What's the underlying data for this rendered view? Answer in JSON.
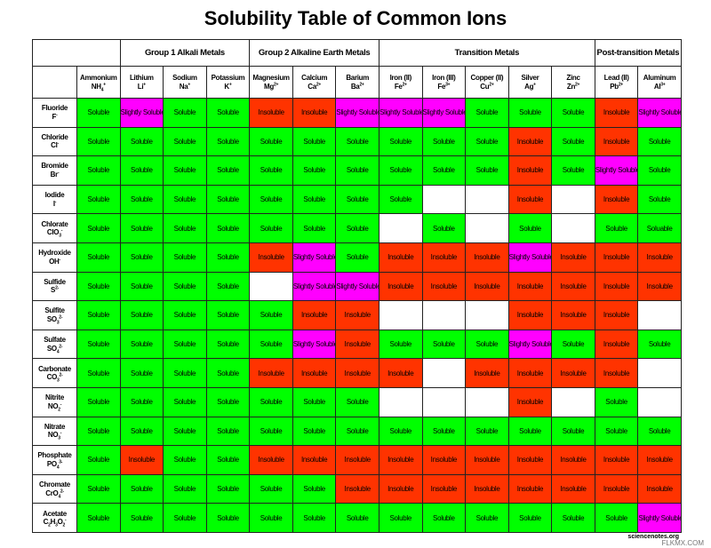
{
  "title": "Solubility Table of Common Ions",
  "footer": "sciencenotes.org",
  "watermark": "FLKMX.COM",
  "colors": {
    "Soluble": "#00ff00",
    "Soluable": "#00ff00",
    "Slightly Soluble": "#ff00ff",
    "Insoluble": "#ff3300"
  },
  "table": {
    "groups": [
      {
        "label": null,
        "columns": [
          {
            "name": "Ammonium",
            "formula": [
              {
                "text": "NH"
              },
              {
                "sub": "4"
              },
              {
                "sup": "+"
              }
            ]
          }
        ]
      },
      {
        "label": "Group 1 Alkali Metals",
        "columns": [
          {
            "name": "Lithium",
            "formula": [
              {
                "text": "Li"
              },
              {
                "sup": "+"
              }
            ]
          },
          {
            "name": "Sodium",
            "formula": [
              {
                "text": "Na"
              },
              {
                "sup": "+"
              }
            ]
          },
          {
            "name": "Potassium",
            "formula": [
              {
                "text": "K"
              },
              {
                "sup": "+"
              }
            ]
          }
        ]
      },
      {
        "label": "Group 2 Alkaline Earth Metals",
        "columns": [
          {
            "name": "Magnesium",
            "formula": [
              {
                "text": "Mg"
              },
              {
                "sup": "2+"
              }
            ]
          },
          {
            "name": "Calcium",
            "formula": [
              {
                "text": "Ca"
              },
              {
                "sup": "2+"
              }
            ]
          },
          {
            "name": "Barium",
            "formula": [
              {
                "text": "Ba"
              },
              {
                "sup": "2+"
              }
            ]
          }
        ]
      },
      {
        "label": "Transition Metals",
        "columns": [
          {
            "name": "Iron (II)",
            "formula": [
              {
                "text": "Fe"
              },
              {
                "sup": "2+"
              }
            ]
          },
          {
            "name": "Iron (III)",
            "formula": [
              {
                "text": "Fe"
              },
              {
                "sup": "3+"
              }
            ]
          },
          {
            "name": "Copper (II)",
            "formula": [
              {
                "text": "Cu"
              },
              {
                "sup": "2+"
              }
            ]
          },
          {
            "name": "Silver",
            "formula": [
              {
                "text": "Ag"
              },
              {
                "sup": "+"
              }
            ]
          },
          {
            "name": "Zinc",
            "formula": [
              {
                "text": "Zn"
              },
              {
                "sup": "2+"
              }
            ]
          }
        ]
      },
      {
        "label": "Post-transition Metals",
        "columns": [
          {
            "name": "Lead (II)",
            "formula": [
              {
                "text": "Pb"
              },
              {
                "sup": "2+"
              }
            ]
          },
          {
            "name": "Aluminum",
            "formula": [
              {
                "text": "Al"
              },
              {
                "sup": "3+"
              }
            ]
          }
        ]
      }
    ],
    "rows": [
      {
        "anion": {
          "name": "Fluoride",
          "formula": [
            {
              "text": "F"
            },
            {
              "sup": "-"
            }
          ]
        },
        "cells": [
          "Soluble",
          "Slightly Soluble",
          "Soluble",
          "Soluble",
          "Insoluble",
          "Insoluble",
          "Slightly Soluble",
          "Slightly Soluble",
          "Slightly Soluble",
          "Soluble",
          "Soluble",
          "Soluble",
          "Insoluble",
          "Slightly Soluble"
        ]
      },
      {
        "anion": {
          "name": "Chloride",
          "formula": [
            {
              "text": "Cl"
            },
            {
              "sup": "-"
            }
          ]
        },
        "cells": [
          "Soluble",
          "Soluble",
          "Soluble",
          "Soluble",
          "Soluble",
          "Soluble",
          "Soluble",
          "Soluble",
          "Soluble",
          "Soluble",
          "Insoluble",
          "Soluble",
          "Insoluble",
          "Soluble"
        ]
      },
      {
        "anion": {
          "name": "Bromide",
          "formula": [
            {
              "text": "Br"
            },
            {
              "sup": "-"
            }
          ]
        },
        "cells": [
          "Soluble",
          "Soluble",
          "Soluble",
          "Soluble",
          "Soluble",
          "Soluble",
          "Soluble",
          "Soluble",
          "Soluble",
          "Soluble",
          "Insoluble",
          "Soluble",
          "Slightly Soluble",
          "Soluble"
        ]
      },
      {
        "anion": {
          "name": "Iodide",
          "formula": [
            {
              "text": "I"
            },
            {
              "sup": "-"
            }
          ]
        },
        "cells": [
          "Soluble",
          "Soluble",
          "Soluble",
          "Soluble",
          "Soluble",
          "Soluble",
          "Soluble",
          "Soluble",
          null,
          null,
          "Insoluble",
          null,
          "Insoluble",
          "Soluble"
        ]
      },
      {
        "anion": {
          "name": "Chlorate",
          "formula": [
            {
              "text": "ClO"
            },
            {
              "sub": "3"
            },
            {
              "sup": "-"
            }
          ]
        },
        "cells": [
          "Soluble",
          "Soluble",
          "Soluble",
          "Soluble",
          "Soluble",
          "Soluble",
          "Soluble",
          null,
          "Soluble",
          null,
          "Soluble",
          null,
          "Soluble",
          "Soluable"
        ]
      },
      {
        "anion": {
          "name": "Hydroxide",
          "formula": [
            {
              "text": "OH"
            },
            {
              "sup": "-"
            }
          ]
        },
        "cells": [
          "Soluble",
          "Soluble",
          "Soluble",
          "Soluble",
          "Insoluble",
          "Slightly Soluble",
          "Soluble",
          "Insoluble",
          "Insoluble",
          "Insoluble",
          "Slightly Soluble",
          "Insoluble",
          "Insoluble",
          "Insoluble"
        ]
      },
      {
        "anion": {
          "name": "Sulfide",
          "formula": [
            {
              "text": "S"
            },
            {
              "sup": "2-"
            }
          ]
        },
        "cells": [
          "Soluble",
          "Soluble",
          "Soluble",
          "Soluble",
          null,
          "Slightly Soluble",
          "Slightly Soluble",
          "Insoluble",
          "Insoluble",
          "Insoluble",
          "Insoluble",
          "Insoluble",
          "Insoluble",
          "Insoluble"
        ]
      },
      {
        "anion": {
          "name": "Sulfite",
          "formula": [
            {
              "text": "SO"
            },
            {
              "sub": "3"
            },
            {
              "sup": "2-"
            }
          ]
        },
        "cells": [
          "Soluble",
          "Soluble",
          "Soluble",
          "Soluble",
          "Soluble",
          "Insoluble",
          "Insoluble",
          null,
          null,
          null,
          "Insoluble",
          "Insoluble",
          "Insoluble",
          null
        ]
      },
      {
        "anion": {
          "name": "Sulfate",
          "formula": [
            {
              "text": "SO"
            },
            {
              "sub": "4"
            },
            {
              "sup": "2-"
            }
          ]
        },
        "cells": [
          "Soluble",
          "Soluble",
          "Soluble",
          "Soluble",
          "Soluble",
          "Slightly Soluble",
          "Insoluble",
          "Soluble",
          "Soluble",
          "Soluble",
          "Slightly Soluble",
          "Soluble",
          "Insoluble",
          "Soluble"
        ]
      },
      {
        "anion": {
          "name": "Carbonate",
          "formula": [
            {
              "text": "CO"
            },
            {
              "sub": "3"
            },
            {
              "sup": "2-"
            }
          ]
        },
        "cells": [
          "Soluble",
          "Soluble",
          "Soluble",
          "Soluble",
          "Insoluble",
          "Insoluble",
          "Insoluble",
          "Insoluble",
          null,
          "Insoluble",
          "Insoluble",
          "Insoluble",
          "Insoluble",
          null
        ]
      },
      {
        "anion": {
          "name": "Nitrite",
          "formula": [
            {
              "text": "NO"
            },
            {
              "sub": "2"
            },
            {
              "sup": "-"
            }
          ]
        },
        "cells": [
          "Soluble",
          "Soluble",
          "Soluble",
          "Soluble",
          "Soluble",
          "Soluble",
          "Soluble",
          null,
          null,
          null,
          "Insoluble",
          null,
          "Soluble",
          null
        ]
      },
      {
        "anion": {
          "name": "Nitrate",
          "formula": [
            {
              "text": "NO"
            },
            {
              "sub": "3"
            },
            {
              "sup": "-"
            }
          ]
        },
        "cells": [
          "Soluble",
          "Soluble",
          "Soluble",
          "Soluble",
          "Soluble",
          "Soluble",
          "Soluble",
          "Soluble",
          "Soluble",
          "Soluble",
          "Soluble",
          "Soluble",
          "Soluble",
          "Soluble"
        ]
      },
      {
        "anion": {
          "name": "Phosphate",
          "formula": [
            {
              "text": "PO"
            },
            {
              "sub": "4"
            },
            {
              "sup": "3-"
            }
          ]
        },
        "cells": [
          "Soluble",
          "Insoluble",
          "Soluble",
          "Soluble",
          "Insoluble",
          "Insoluble",
          "Insoluble",
          "Insoluble",
          "Insoluble",
          "Insoluble",
          "Insoluble",
          "Insoluble",
          "Insoluble",
          "Insoluble"
        ]
      },
      {
        "anion": {
          "name": "Chromate",
          "formula": [
            {
              "text": "CrO"
            },
            {
              "sub": "4"
            },
            {
              "sup": "2-"
            }
          ]
        },
        "cells": [
          "Soluble",
          "Soluble",
          "Soluble",
          "Soluble",
          "Soluble",
          "Soluble",
          "Insoluble",
          "Insoluble",
          "Insoluble",
          "Insoluble",
          "Insoluble",
          "Insoluble",
          "Insoluble",
          "Insoluble"
        ]
      },
      {
        "anion": {
          "name": "Acetate",
          "formula": [
            {
              "text": "C"
            },
            {
              "sub": "2"
            },
            {
              "text": "H"
            },
            {
              "sub": "3"
            },
            {
              "text": "O"
            },
            {
              "sub": "2"
            },
            {
              "sup": "-"
            }
          ]
        },
        "cells": [
          "Soluble",
          "Soluble",
          "Soluble",
          "Soluble",
          "Soluble",
          "Soluble",
          "Soluble",
          "Soluble",
          "Soluble",
          "Soluble",
          "Soluble",
          "Soluble",
          "Soluble",
          "Slightly Soluble"
        ]
      }
    ]
  }
}
